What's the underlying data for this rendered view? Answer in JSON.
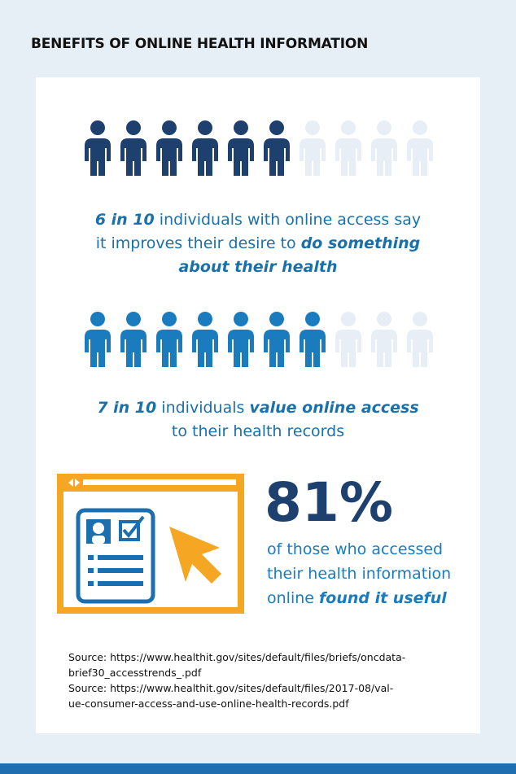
{
  "title": "BENEFITS OF ONLINE HEALTH INFORMATION",
  "stats": [
    {
      "filled": 6,
      "total": 10,
      "color": "#1d406e",
      "empty_color": "#e8eef6",
      "lines": [
        [
          {
            "text": "6 in 10",
            "em": true
          },
          {
            "text": " individuals with online access say"
          }
        ],
        [
          {
            "text": "it improves their desire to "
          },
          {
            "text": "do something",
            "em": true
          }
        ],
        [
          {
            "text": "about their health",
            "em": true
          }
        ]
      ]
    },
    {
      "filled": 7,
      "total": 10,
      "color": "#1b7bbf",
      "empty_color": "#e8eef6",
      "lines": [
        [
          {
            "text": "7 in 10",
            "em": true
          },
          {
            "text": " individuals "
          },
          {
            "text": "value online access",
            "em": true
          }
        ],
        [
          {
            "text": "to their health records"
          }
        ]
      ]
    }
  ],
  "highlight": {
    "value": "81%",
    "lines": [
      [
        {
          "text": "of those who accessed"
        }
      ],
      [
        {
          "text": "their health information"
        }
      ],
      [
        {
          "text": "online "
        },
        {
          "text": "found it useful",
          "em": true
        }
      ]
    ]
  },
  "sources": [
    "Source: https://www.healthit.gov/sites/default/files/briefs/oncdata-",
    "brief30_accesstrends_.pdf",
    "Source: https://www.healthit.gov/sites/default/files/2017-08/val-",
    "ue-consumer-access-and-use-online-health-records.pdf"
  ]
}
